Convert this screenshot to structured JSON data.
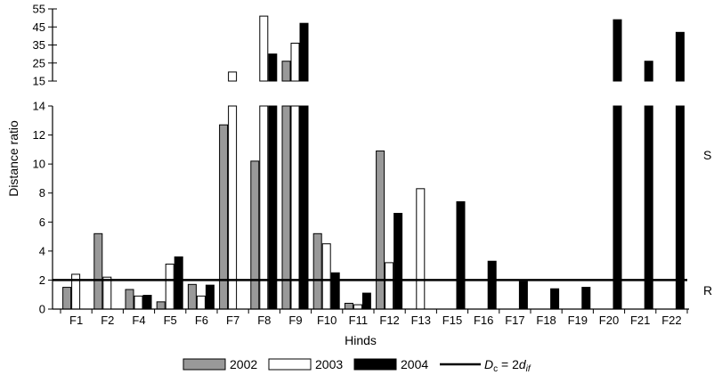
{
  "chart_data": {
    "type": "bar",
    "xlabel": "Hinds",
    "ylabel": "Distance ratio",
    "categories": [
      "F1",
      "F2",
      "F4",
      "F5",
      "F6",
      "F7",
      "F8",
      "F9",
      "F10",
      "F11",
      "F12",
      "F13",
      "F15",
      "F16",
      "F17",
      "F18",
      "F19",
      "F20",
      "F21",
      "F22"
    ],
    "series": [
      {
        "name": "2002",
        "color": "#999999",
        "values": [
          1.5,
          5.2,
          1.35,
          0.5,
          1.7,
          12.7,
          10.2,
          26,
          5.2,
          0.4,
          10.9,
          null,
          null,
          null,
          null,
          null,
          null,
          null,
          null,
          null
        ]
      },
      {
        "name": "2003",
        "color": "#ffffff",
        "values": [
          2.4,
          2.2,
          0.9,
          3.1,
          0.9,
          20,
          51,
          36,
          4.5,
          0.3,
          3.2,
          8.3,
          null,
          null,
          null,
          null,
          null,
          null,
          null,
          null
        ]
      },
      {
        "name": "2004",
        "color": "#000000",
        "values": [
          null,
          null,
          0.95,
          3.6,
          1.65,
          null,
          30,
          47,
          2.5,
          1.1,
          6.6,
          null,
          7.4,
          3.3,
          1.9,
          1.4,
          1.5,
          49,
          26,
          42
        ]
      }
    ],
    "y_axis": {
      "lower": {
        "range": [
          0,
          14
        ],
        "ticks": [
          "0",
          "2",
          "4",
          "6",
          "8",
          "10",
          "12",
          "14"
        ]
      },
      "upper": {
        "range": [
          15,
          55
        ],
        "ticks": [
          "15",
          "25",
          "35",
          "45",
          "55"
        ]
      },
      "broken": true
    },
    "reference_line": {
      "value": 2,
      "label_main": "D",
      "label_sub1": "c",
      "label_mid": " = 2",
      "label_main2": "d",
      "label_sub2": "if"
    },
    "side_labels": {
      "upper": "S",
      "lower": "R"
    },
    "legend_position": "bottom",
    "grid": false
  }
}
